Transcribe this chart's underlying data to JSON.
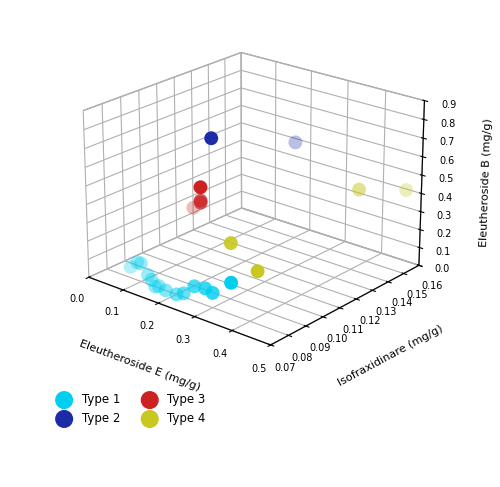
{
  "type1": {
    "color": "#00CFEF",
    "label": "Type 1",
    "points": [
      [
        0.07,
        0.08,
        0.06
      ],
      [
        0.09,
        0.08,
        0.1
      ],
      [
        0.1,
        0.08,
        0.1
      ],
      [
        0.12,
        0.08,
        0.05
      ],
      [
        0.13,
        0.08,
        0.03
      ],
      [
        0.14,
        0.08,
        0.0
      ],
      [
        0.15,
        0.08,
        0.01
      ],
      [
        0.17,
        0.08,
        0.0
      ],
      [
        0.2,
        0.08,
        0.0
      ],
      [
        0.22,
        0.08,
        0.02
      ],
      [
        0.25,
        0.08,
        0.08
      ],
      [
        0.28,
        0.08,
        0.09
      ],
      [
        0.3,
        0.08,
        0.08
      ],
      [
        0.35,
        0.08,
        0.17
      ]
    ]
  },
  "type2": {
    "color": "#1C2CA8",
    "label": "Type 2",
    "points": [
      [
        0.3,
        0.08,
        0.89
      ],
      [
        0.38,
        0.11,
        0.8
      ]
    ]
  },
  "type3": {
    "color": "#CC2222",
    "label": "Type 3",
    "points": [
      [
        0.25,
        0.08,
        0.5
      ],
      [
        0.27,
        0.08,
        0.55
      ],
      [
        0.27,
        0.08,
        0.54
      ],
      [
        0.27,
        0.08,
        0.62
      ]
    ]
  },
  "type4": {
    "color": "#C8C820",
    "label": "Type 4",
    "points": [
      [
        0.35,
        0.08,
        0.38
      ],
      [
        0.42,
        0.08,
        0.28
      ],
      [
        0.46,
        0.13,
        0.52
      ],
      [
        0.5,
        0.15,
        0.46
      ]
    ]
  },
  "xlim": [
    0.0,
    0.5
  ],
  "ylim": [
    0.07,
    0.16
  ],
  "zlim": [
    0.0,
    0.9
  ],
  "xlabel": "Eleutheroside E (mg/g)",
  "ylabel": "Isofraxidinare (mg/g)",
  "zlabel": "Eleutheroside B (mg/g)",
  "elev": 22,
  "azim": -50,
  "marker_size": 100
}
